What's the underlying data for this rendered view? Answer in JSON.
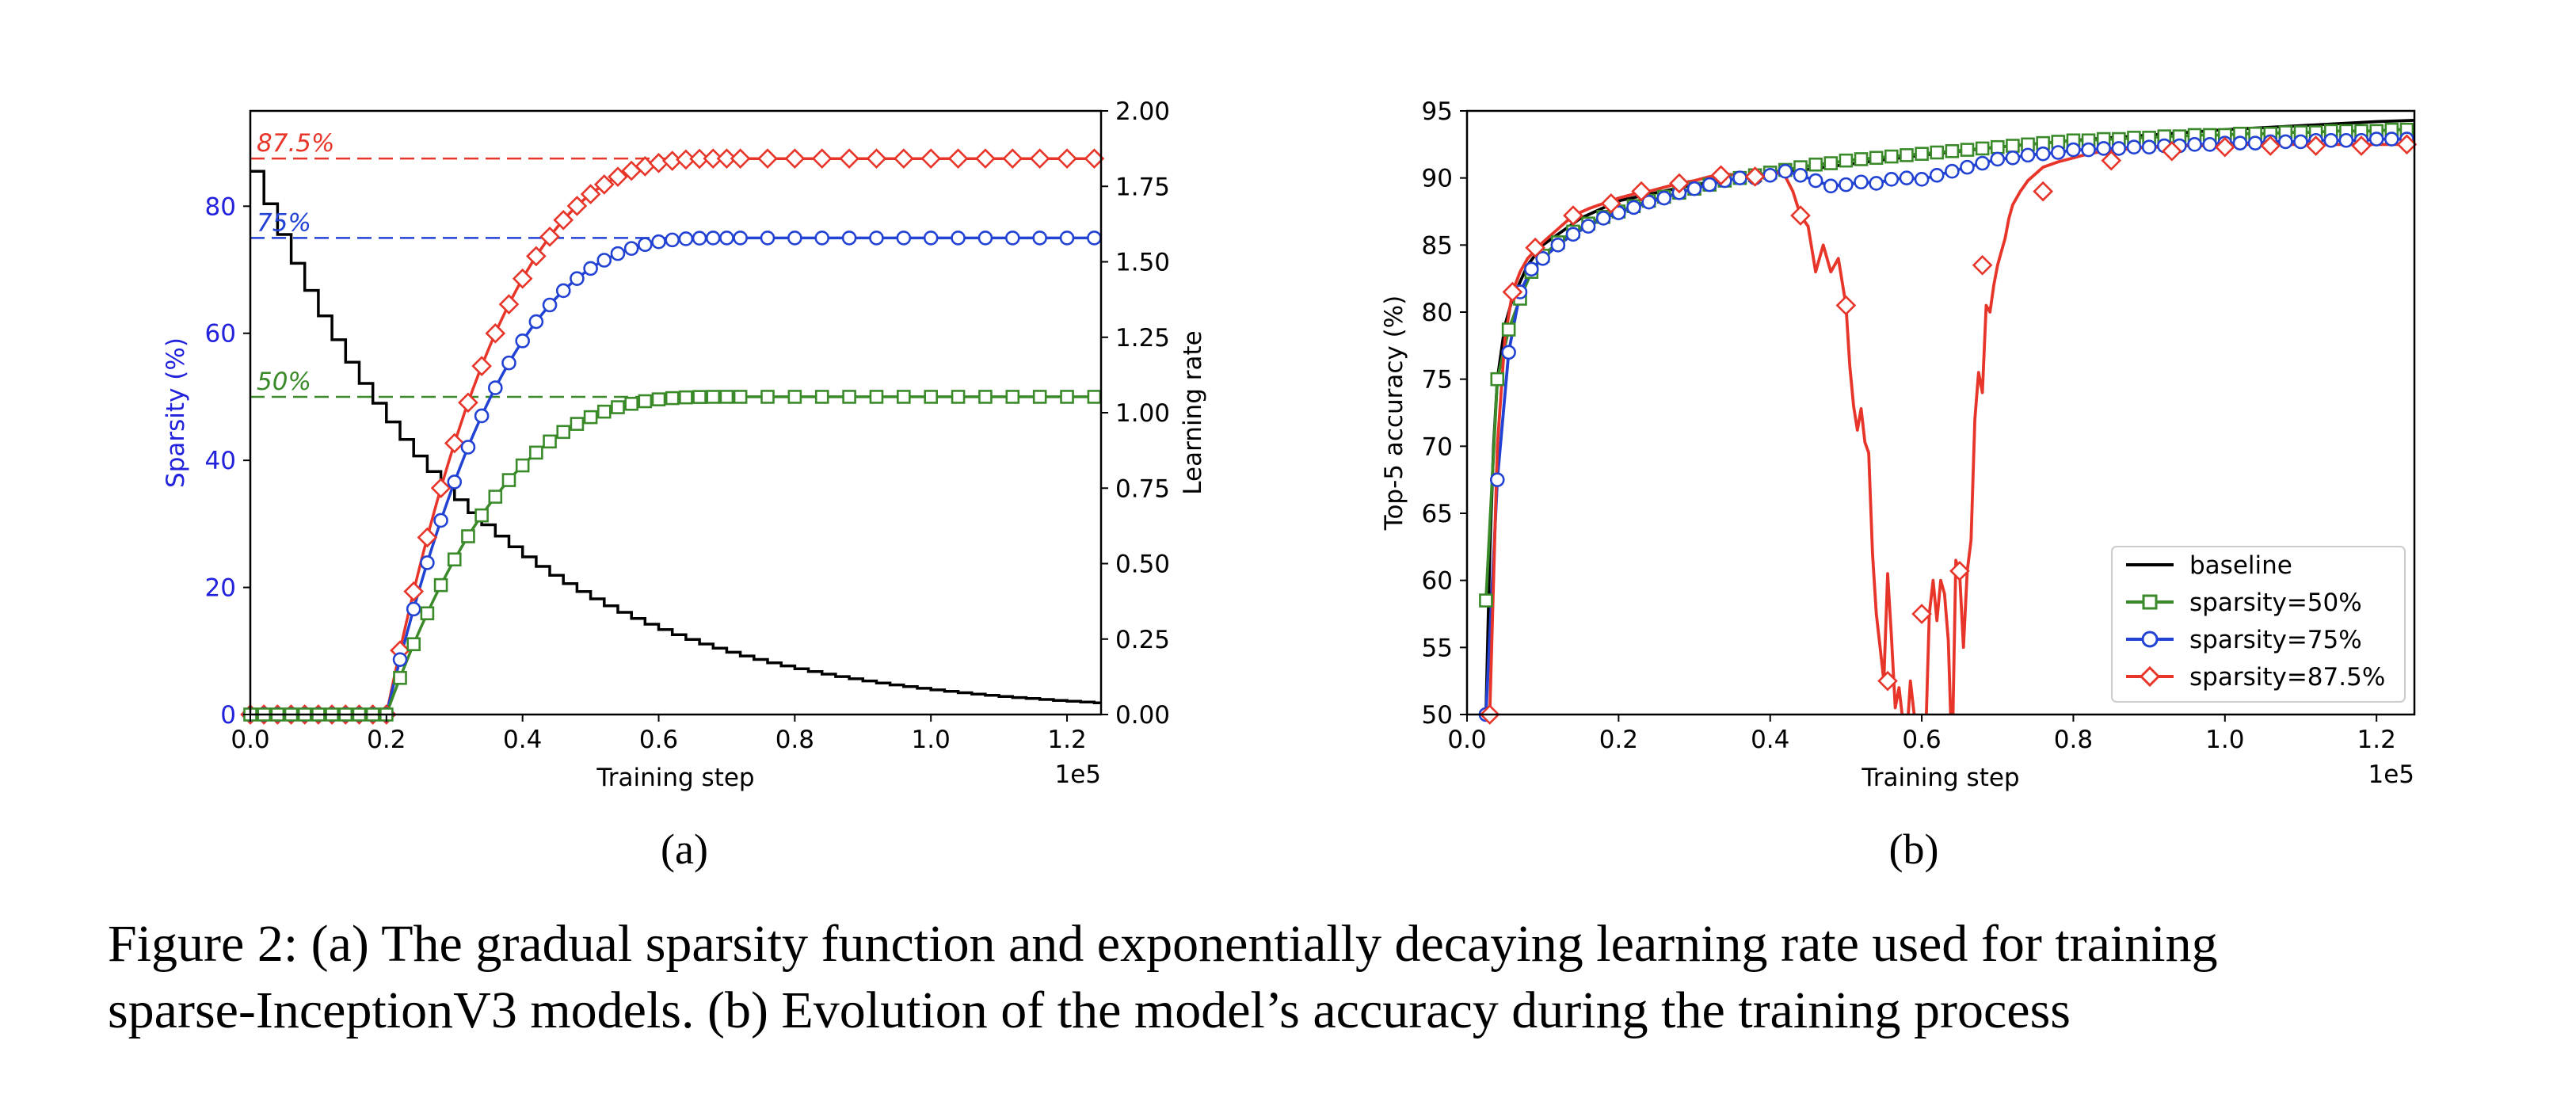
{
  "figure": {
    "label_a": "(a)",
    "label_b": "(b)",
    "caption_line1": "Figure 2: (a) The gradual sparsity function and exponentially decaying learning rate used for training",
    "caption_line2": "sparse-InceptionV3 models. (b) Evolution of the model’s accuracy during the training process"
  },
  "chart_data": [
    {
      "type": "line",
      "title": "",
      "xlabel": "Training step",
      "x_offset_label": "1e5",
      "ylabel_left": "Sparsity (%)",
      "ylabel_right": "Learning rate",
      "xlim": [
        0,
        1.25
      ],
      "ylim_left": [
        0,
        95
      ],
      "ylim_right": [
        0,
        2.0
      ],
      "x_ticks": [
        "0.0",
        "0.2",
        "0.4",
        "0.6",
        "0.8",
        "1.0",
        "1.2"
      ],
      "left_ticks": [
        "0",
        "20",
        "40",
        "60",
        "80"
      ],
      "right_ticks": [
        "0.00",
        "0.25",
        "0.50",
        "0.75",
        "1.00",
        "1.25",
        "1.50",
        "1.75",
        "2.00"
      ],
      "grid": false,
      "left_axis_color": "#2222dd",
      "annotations": [
        {
          "text": "87.5%",
          "y": 87.5,
          "color": "#e8352a"
        },
        {
          "text": "75%",
          "y": 75,
          "color": "#2242d4"
        },
        {
          "text": "50%",
          "y": 50,
          "color": "#3a8a2a"
        }
      ],
      "sparsity_schedule": {
        "start_step": 0.2,
        "end_step": 0.7,
        "marker_step": 0.02
      },
      "series": [
        {
          "target": 87.5,
          "color": "#e8352a",
          "marker": "diamond"
        },
        {
          "target": 75,
          "color": "#2242d4",
          "marker": "circle"
        },
        {
          "target": 50,
          "color": "#3a8a2a",
          "marker": "square"
        }
      ],
      "learning_rate": {
        "color": "#000000",
        "initial": 1.8,
        "step_width": 0.02,
        "decay_per_step": 0.94
      }
    },
    {
      "type": "line",
      "title": "",
      "xlabel": "Training step",
      "x_offset_label": "1e5",
      "ylabel": "Top-5 accuracy (%)",
      "xlim": [
        0,
        1.25
      ],
      "ylim": [
        50,
        95
      ],
      "x_ticks": [
        "0.0",
        "0.2",
        "0.4",
        "0.6",
        "0.8",
        "1.0",
        "1.2"
      ],
      "y_ticks": [
        "50",
        "55",
        "60",
        "65",
        "70",
        "75",
        "80",
        "85",
        "90",
        "95"
      ],
      "grid": false,
      "legend_position": "bottom-right",
      "series": [
        {
          "name": "baseline",
          "color": "#000000",
          "marker": "none",
          "x": [
            0.025,
            0.03,
            0.035,
            0.04,
            0.05,
            0.06,
            0.08,
            0.1,
            0.15,
            0.2,
            0.3,
            0.4,
            0.5,
            0.6,
            0.7,
            0.8,
            0.9,
            1.0,
            1.1,
            1.2,
            1.25
          ],
          "y": [
            50,
            62,
            70,
            75,
            79,
            81,
            83.5,
            85,
            87,
            88.3,
            89.5,
            90.3,
            91,
            91.7,
            92.3,
            92.8,
            93.2,
            93.6,
            93.9,
            94.2,
            94.3
          ]
        },
        {
          "name": "sparsity=50%",
          "color": "#3a8a2a",
          "marker": "square",
          "x": [
            0.025,
            0.04,
            0.055,
            0.07,
            0.085,
            0.1,
            0.12,
            0.14,
            0.16,
            0.18,
            0.2,
            0.22,
            0.24,
            0.26,
            0.28,
            0.3,
            0.32,
            0.34,
            0.36,
            0.38,
            0.4,
            0.42,
            0.44,
            0.46,
            0.48,
            0.5,
            0.52,
            0.54,
            0.56,
            0.58,
            0.6,
            0.62,
            0.64,
            0.66,
            0.68,
            0.7,
            0.72,
            0.74,
            0.76,
            0.78,
            0.8,
            0.82,
            0.84,
            0.86,
            0.88,
            0.9,
            0.92,
            0.94,
            0.96,
            0.98,
            1.0,
            1.02,
            1.04,
            1.06,
            1.08,
            1.1,
            1.12,
            1.14,
            1.16,
            1.18,
            1.2,
            1.22,
            1.24
          ],
          "y": [
            58.5,
            75,
            78.7,
            81,
            83,
            84.2,
            85.2,
            86,
            86.6,
            87.1,
            87.5,
            87.9,
            88.3,
            88.6,
            88.9,
            89.2,
            89.5,
            89.8,
            90,
            90.2,
            90.4,
            90.6,
            90.8,
            91,
            91.1,
            91.3,
            91.4,
            91.5,
            91.6,
            91.7,
            91.8,
            91.9,
            92,
            92.1,
            92.2,
            92.3,
            92.4,
            92.5,
            92.6,
            92.7,
            92.8,
            92.8,
            92.9,
            92.9,
            93,
            93,
            93.1,
            93.1,
            93.2,
            93.2,
            93.2,
            93.3,
            93.3,
            93.3,
            93.4,
            93.4,
            93.4,
            93.5,
            93.5,
            93.5,
            93.5,
            93.6,
            93.6
          ]
        },
        {
          "name": "sparsity=75%",
          "color": "#2242d4",
          "marker": "circle",
          "x": [
            0.025,
            0.04,
            0.055,
            0.07,
            0.085,
            0.1,
            0.12,
            0.14,
            0.16,
            0.18,
            0.2,
            0.22,
            0.24,
            0.26,
            0.28,
            0.3,
            0.32,
            0.34,
            0.36,
            0.38,
            0.4,
            0.42,
            0.44,
            0.46,
            0.48,
            0.5,
            0.52,
            0.54,
            0.56,
            0.58,
            0.6,
            0.62,
            0.64,
            0.66,
            0.68,
            0.7,
            0.72,
            0.74,
            0.76,
            0.78,
            0.8,
            0.82,
            0.84,
            0.86,
            0.88,
            0.9,
            0.92,
            0.94,
            0.96,
            0.98,
            1.0,
            1.02,
            1.04,
            1.06,
            1.08,
            1.1,
            1.12,
            1.14,
            1.16,
            1.18,
            1.2,
            1.22,
            1.24
          ],
          "y": [
            50,
            67.5,
            77,
            81.5,
            83.2,
            84,
            85,
            85.8,
            86.4,
            87,
            87.4,
            87.8,
            88.2,
            88.5,
            88.9,
            89.2,
            89.5,
            89.8,
            90,
            90,
            90.2,
            90.5,
            90.2,
            89.8,
            89.4,
            89.5,
            89.7,
            89.6,
            89.9,
            90,
            89.9,
            90.2,
            90.5,
            90.8,
            91.1,
            91.4,
            91.5,
            91.7,
            91.8,
            91.9,
            92.1,
            92.1,
            92.2,
            92.2,
            92.3,
            92.3,
            92.4,
            92.4,
            92.5,
            92.5,
            92.6,
            92.6,
            92.6,
            92.7,
            92.7,
            92.7,
            92.8,
            92.8,
            92.8,
            92.8,
            92.9,
            92.9,
            92.9
          ]
        },
        {
          "name": "sparsity=87.5%",
          "color": "#e8352a",
          "marker": "diamond",
          "x": [
            0.03,
            0.04,
            0.05,
            0.06,
            0.07,
            0.08,
            0.1,
            0.12,
            0.14,
            0.16,
            0.18,
            0.2,
            0.22,
            0.24,
            0.26,
            0.28,
            0.3,
            0.32,
            0.34,
            0.36,
            0.38,
            0.4,
            0.41,
            0.42,
            0.43,
            0.44,
            0.45,
            0.46,
            0.47,
            0.48,
            0.49,
            0.5,
            0.505,
            0.51,
            0.515,
            0.52,
            0.525,
            0.53,
            0.535,
            0.54,
            0.545,
            0.55,
            0.555,
            0.56,
            0.565,
            0.57,
            0.575,
            0.58,
            0.585,
            0.59,
            0.595,
            0.6,
            0.605,
            0.61,
            0.615,
            0.62,
            0.625,
            0.63,
            0.635,
            0.64,
            0.645,
            0.65,
            0.655,
            0.66,
            0.665,
            0.67,
            0.675,
            0.68,
            0.685,
            0.69,
            0.695,
            0.7,
            0.705,
            0.71,
            0.715,
            0.72,
            0.73,
            0.74,
            0.75,
            0.76,
            0.78,
            0.8,
            0.82,
            0.84,
            0.86,
            0.88,
            0.9,
            0.92,
            0.94,
            0.96,
            0.98,
            1.0,
            1.02,
            1.04,
            1.06,
            1.08,
            1.1,
            1.12,
            1.14,
            1.16,
            1.18,
            1.2,
            1.22,
            1.24
          ],
          "y": [
            50,
            70,
            78,
            81.5,
            83,
            84,
            85.2,
            86.2,
            87.2,
            87.7,
            88.1,
            88.5,
            88.8,
            89,
            89.3,
            89.6,
            89.8,
            90.1,
            90.3,
            90.2,
            90.1,
            90,
            90.4,
            90.1,
            89,
            87.2,
            86.4,
            83,
            85,
            83,
            84,
            80.5,
            76,
            73,
            71.2,
            72.8,
            70.3,
            69.5,
            62,
            57.5,
            55,
            52.5,
            60.5,
            55.8,
            50.5,
            52,
            49.5,
            48,
            52.5,
            50,
            47,
            46,
            48,
            57.5,
            60,
            57,
            60,
            59,
            55.5,
            46.5,
            61.5,
            60.5,
            55,
            60.7,
            63,
            72,
            75.5,
            74,
            80.5,
            80,
            82,
            83.5,
            84.5,
            85.5,
            87,
            88,
            89,
            89.8,
            90.3,
            90.8,
            91.2,
            91.5,
            91.8,
            92,
            92.1,
            92.2,
            92.3,
            92.3,
            92.4,
            92.4,
            92.4,
            92.4,
            92.5,
            92.5,
            92.5,
            92.5,
            92.5,
            92.5,
            92.5,
            92.5,
            92.5,
            92.5,
            92.5,
            92.5
          ],
          "marker_x": [
            0.03,
            0.06,
            0.09,
            0.14,
            0.19,
            0.23,
            0.28,
            0.335,
            0.38,
            0.44,
            0.5,
            0.555,
            0.6,
            0.65,
            0.68,
            0.76,
            0.85,
            0.93,
            1.0,
            1.06,
            1.12,
            1.18,
            1.24
          ],
          "marker_y": [
            50,
            81.5,
            84.8,
            87.2,
            88.1,
            89,
            89.6,
            90.2,
            90.1,
            87.2,
            80.5,
            52.5,
            57.5,
            60.7,
            83.5,
            89,
            91.3,
            92,
            92.3,
            92.4,
            92.4,
            92.4,
            92.5
          ]
        }
      ]
    }
  ]
}
